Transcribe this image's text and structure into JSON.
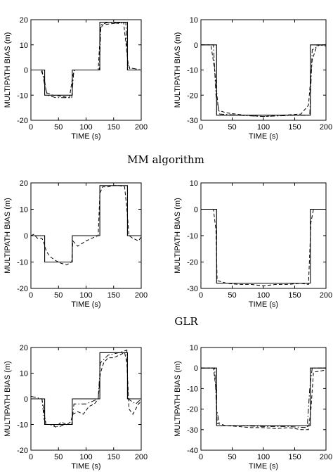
{
  "captions": [
    "MM algorithm",
    "GLR"
  ],
  "chart_data": [
    {
      "type": "line",
      "xlabel": "TIME (s)",
      "ylabel": "MULTIPATH BIAS (m)",
      "xlim": [
        0,
        200
      ],
      "ylim": [
        -20,
        20
      ],
      "xticks": [
        "0",
        "50",
        "100",
        "150",
        "200"
      ],
      "yticks": [
        "-20",
        "-10",
        "0",
        "10",
        "20"
      ],
      "grid": false,
      "series": [
        {
          "style": "solid",
          "x": [
            0,
            25,
            25,
            75,
            75,
            125,
            125,
            175,
            175,
            200
          ],
          "y": [
            0,
            0,
            -10,
            -10,
            0,
            0,
            19,
            19,
            0,
            0
          ]
        },
        {
          "style": "dashed",
          "x": [
            0,
            18,
            24,
            28,
            40,
            55,
            70,
            76,
            80,
            122,
            126,
            130,
            150,
            168,
            176,
            180,
            200
          ],
          "y": [
            0,
            0,
            -3,
            -9,
            -10,
            -10.5,
            -11,
            -2,
            0,
            0,
            16,
            18,
            18.5,
            19,
            3,
            0,
            0
          ]
        },
        {
          "style": "dashdot",
          "x": [
            0,
            20,
            25,
            30,
            45,
            60,
            74,
            78,
            124,
            127,
            140,
            160,
            172,
            176,
            200
          ],
          "y": [
            0,
            0,
            -6,
            -10,
            -11,
            -11,
            -11,
            0,
            0,
            18,
            19,
            18.5,
            19,
            1,
            0
          ]
        }
      ]
    },
    {
      "type": "line",
      "xlabel": "TIME (s)",
      "ylabel": "MULTIPATH BIAS (m)",
      "xlim": [
        0,
        200
      ],
      "ylim": [
        -30,
        10
      ],
      "xticks": [
        "0",
        "50",
        "100",
        "150",
        "200"
      ],
      "yticks": [
        "-30",
        "-20",
        "-10",
        "0",
        "10"
      ],
      "grid": false,
      "series": [
        {
          "style": "solid",
          "x": [
            0,
            25,
            25,
            175,
            175,
            200
          ],
          "y": [
            0,
            0,
            -28,
            -28,
            0,
            0
          ]
        },
        {
          "style": "dashed",
          "x": [
            0,
            16,
            22,
            28,
            40,
            70,
            100,
            130,
            160,
            172,
            178,
            186,
            200
          ],
          "y": [
            0,
            0,
            -10,
            -26,
            -27,
            -28,
            -28.5,
            -28,
            -27.5,
            -24,
            -6,
            0,
            0
          ]
        },
        {
          "style": "dashdot",
          "x": [
            0,
            20,
            24,
            30,
            60,
            100,
            150,
            174,
            178,
            190,
            200
          ],
          "y": [
            0,
            0,
            -20,
            -27.5,
            -28,
            -28.5,
            -28,
            -28,
            -2,
            0,
            -0.5
          ]
        }
      ]
    },
    {
      "type": "line",
      "xlabel": "TIME (s)",
      "ylabel": "MULTIPATH BIAS (m)",
      "xlim": [
        0,
        200
      ],
      "ylim": [
        -20,
        20
      ],
      "xticks": [
        "0",
        "50",
        "100",
        "150",
        "200"
      ],
      "yticks": [
        "-20",
        "-10",
        "0",
        "10",
        "20"
      ],
      "grid": false,
      "series": [
        {
          "style": "solid",
          "x": [
            0,
            25,
            25,
            75,
            75,
            125,
            125,
            175,
            175,
            200
          ],
          "y": [
            0,
            0,
            -10,
            -10,
            0,
            0,
            19,
            19,
            0,
            0
          ]
        },
        {
          "style": "dashed",
          "x": [
            0,
            5,
            12,
            20,
            24,
            28,
            35,
            45,
            55,
            65,
            74,
            76,
            85,
            100,
            110,
            122,
            125,
            130,
            140,
            150,
            160,
            170,
            174,
            178,
            185,
            195,
            200
          ],
          "y": [
            0,
            0.5,
            -1,
            -1,
            -3,
            -6,
            -8,
            -9.5,
            -10.5,
            -11,
            -10,
            -2,
            -4,
            -2,
            -1,
            0,
            16,
            18.5,
            18.5,
            19,
            19,
            18.5,
            10,
            0,
            -1,
            -2,
            -0.5
          ]
        }
      ]
    },
    {
      "type": "line",
      "xlabel": "TIME (s)",
      "ylabel": "MULTIPATH BIAS (m)",
      "xlim": [
        0,
        200
      ],
      "ylim": [
        -30,
        10
      ],
      "xticks": [
        "0",
        "50",
        "100",
        "150",
        "200"
      ],
      "yticks": [
        "-30",
        "-20",
        "-10",
        "0",
        "10"
      ],
      "grid": false,
      "series": [
        {
          "style": "solid",
          "x": [
            0,
            25,
            25,
            175,
            175,
            200
          ],
          "y": [
            0,
            0,
            -28,
            -28,
            0,
            0
          ]
        },
        {
          "style": "dashed",
          "x": [
            0,
            20,
            24,
            26,
            40,
            60,
            80,
            100,
            120,
            140,
            160,
            172,
            176,
            180,
            200
          ],
          "y": [
            0,
            0,
            -8,
            -27,
            -28,
            -28.5,
            -28.5,
            -29,
            -28.5,
            -28.5,
            -28,
            -28.5,
            -5,
            0,
            0
          ]
        }
      ]
    },
    {
      "type": "line",
      "xlabel": "TIME (s)",
      "ylabel": "MULTIPATH BIAS (m)",
      "xlim": [
        0,
        200
      ],
      "ylim": [
        -20,
        20
      ],
      "xticks": [
        "0",
        "50",
        "100",
        "150",
        "200"
      ],
      "yticks": [
        "-20",
        "-10",
        "0",
        "10",
        "20"
      ],
      "grid": false,
      "series": [
        {
          "style": "solid",
          "x": [
            0,
            25,
            25,
            75,
            75,
            125,
            125,
            175,
            175,
            200
          ],
          "y": [
            0,
            0,
            -10,
            -10,
            0,
            0,
            18,
            18,
            0,
            0
          ]
        },
        {
          "style": "dashed",
          "x": [
            0,
            20,
            23,
            27,
            35,
            45,
            55,
            65,
            72,
            76,
            85,
            95,
            105,
            115,
            122,
            126,
            132,
            140,
            150,
            160,
            170,
            174,
            178,
            185,
            195,
            200
          ],
          "y": [
            0,
            0,
            -4,
            -10,
            -10,
            -11,
            -9,
            -10,
            -9,
            -6,
            -5,
            -6,
            -3,
            -2,
            0,
            10,
            14,
            16,
            16,
            17,
            18,
            14,
            -4,
            -6,
            -2,
            -1
          ]
        },
        {
          "style": "dashdot",
          "x": [
            0,
            20,
            24,
            30,
            40,
            50,
            60,
            74,
            78,
            100,
            122,
            126,
            140,
            160,
            174,
            176,
            190,
            200
          ],
          "y": [
            1,
            0,
            -8,
            -10,
            -10,
            -11,
            -10,
            -10,
            -2,
            -2,
            0,
            14,
            17,
            18,
            19,
            0,
            -2,
            0
          ]
        }
      ]
    },
    {
      "type": "line",
      "xlabel": "TIME (s)",
      "ylabel": "MULTIPATH BIAS (m)",
      "xlim": [
        0,
        200
      ],
      "ylim": [
        -40,
        10
      ],
      "xticks": [
        "0",
        "50",
        "100",
        "150",
        "200"
      ],
      "yticks": [
        "-40",
        "-30",
        "-20",
        "-10",
        "0",
        "10"
      ],
      "grid": false,
      "series": [
        {
          "style": "solid",
          "x": [
            0,
            25,
            25,
            175,
            175,
            200
          ],
          "y": [
            0,
            0,
            -28,
            -28,
            0,
            0
          ]
        },
        {
          "style": "dashed",
          "x": [
            0,
            20,
            24,
            26,
            40,
            60,
            80,
            100,
            120,
            140,
            160,
            172,
            176,
            180,
            200
          ],
          "y": [
            0,
            0,
            -10,
            -27,
            -28,
            -28.5,
            -29,
            -29,
            -29.5,
            -29,
            -30,
            -30,
            -20,
            -2,
            -1
          ]
        },
        {
          "style": "dashdot",
          "x": [
            0,
            22,
            25,
            30,
            60,
            100,
            140,
            170,
            174,
            178,
            200
          ],
          "y": [
            0,
            0,
            -20,
            -28,
            -28,
            -28.5,
            -28.5,
            -29,
            -10,
            0,
            0
          ]
        }
      ]
    }
  ]
}
